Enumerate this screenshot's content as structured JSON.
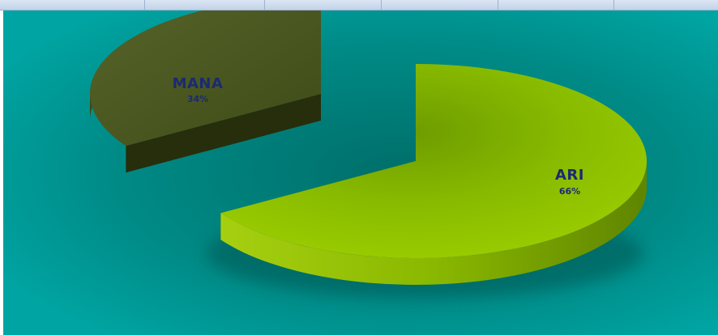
{
  "colors": {
    "background": "#009c9c",
    "ari_top": "#8cbf00",
    "ari_side": "#6e9a00",
    "mana_top": "#4d5c1c",
    "mana_side": "#2c3510",
    "label": "#1b2a73"
  },
  "chart_data": {
    "type": "pie",
    "style": "3d-exploded",
    "slices": [
      {
        "label": "ARI",
        "value": 66,
        "percent_label": "66%"
      },
      {
        "label": "MANA",
        "value": 34,
        "percent_label": "34%"
      }
    ],
    "title": "",
    "legend": "none"
  }
}
